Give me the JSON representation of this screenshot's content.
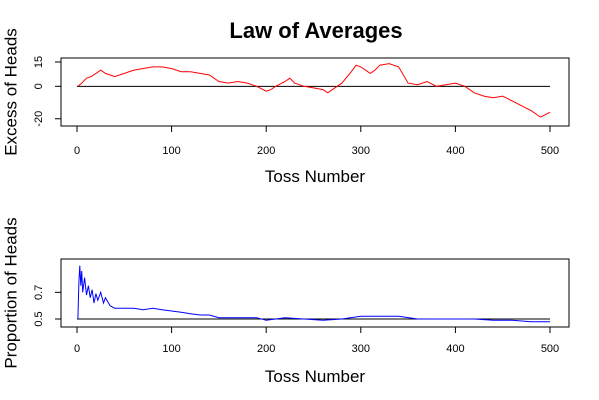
{
  "title": "Law of Averages",
  "colors": {
    "excess": "#ff0000",
    "proportion": "#0000ff",
    "reference": "#000000",
    "frame": "#000000"
  },
  "chart_data": [
    {
      "type": "line",
      "name": "excess",
      "xlabel": "Toss Number",
      "ylabel": "Excess of Heads",
      "xlim": [
        0,
        500
      ],
      "ylim": [
        -22,
        15
      ],
      "xticks": [
        0,
        100,
        200,
        300,
        400,
        500
      ],
      "yticks": [
        -20,
        0,
        15
      ],
      "reference_y": 0,
      "grid": false,
      "x": [
        1,
        5,
        10,
        15,
        20,
        25,
        30,
        40,
        50,
        60,
        70,
        80,
        90,
        100,
        110,
        120,
        130,
        140,
        150,
        160,
        170,
        180,
        190,
        200,
        205,
        210,
        220,
        225,
        230,
        240,
        250,
        260,
        265,
        270,
        280,
        290,
        295,
        300,
        310,
        315,
        320,
        330,
        340,
        350,
        360,
        370,
        380,
        390,
        400,
        410,
        420,
        430,
        440,
        450,
        460,
        470,
        480,
        490,
        500
      ],
      "y": [
        0,
        2,
        5,
        6,
        8,
        10,
        8,
        6,
        8,
        10,
        11,
        12,
        12,
        11,
        9,
        9,
        8,
        7,
        3,
        2,
        3,
        2,
        0,
        -3,
        -2,
        0,
        3,
        5,
        2,
        0,
        -1,
        -2,
        -4,
        -2,
        2,
        9,
        13,
        12,
        8,
        10,
        13,
        14,
        12,
        2,
        1,
        3,
        0,
        1,
        2,
        0,
        -4,
        -6,
        -7,
        -6,
        -9,
        -12,
        -15,
        -19,
        -16
      ]
    },
    {
      "type": "line",
      "name": "proportion",
      "xlabel": "Toss Number",
      "ylabel": "Proportion of Heads",
      "xlim": [
        0,
        500
      ],
      "ylim": [
        0.47,
        0.92
      ],
      "xticks": [
        0,
        100,
        200,
        300,
        400,
        500
      ],
      "yticks": [
        0.5,
        0.7
      ],
      "reference_y": 0.5,
      "grid": false,
      "x": [
        1,
        2,
        3,
        4,
        5,
        6,
        8,
        10,
        12,
        14,
        16,
        18,
        20,
        22,
        25,
        28,
        30,
        35,
        40,
        50,
        60,
        70,
        80,
        90,
        100,
        110,
        120,
        130,
        140,
        150,
        160,
        170,
        180,
        190,
        200,
        220,
        240,
        260,
        280,
        300,
        320,
        340,
        360,
        380,
        400,
        420,
        440,
        460,
        480,
        500
      ],
      "y": [
        0.5,
        0.78,
        0.9,
        0.75,
        0.86,
        0.7,
        0.81,
        0.68,
        0.75,
        0.66,
        0.72,
        0.62,
        0.69,
        0.64,
        0.7,
        0.62,
        0.66,
        0.6,
        0.58,
        0.58,
        0.58,
        0.57,
        0.58,
        0.57,
        0.56,
        0.55,
        0.54,
        0.53,
        0.53,
        0.51,
        0.51,
        0.51,
        0.51,
        0.51,
        0.49,
        0.51,
        0.5,
        0.49,
        0.5,
        0.52,
        0.52,
        0.52,
        0.5,
        0.5,
        0.5,
        0.5,
        0.49,
        0.49,
        0.48,
        0.48
      ]
    }
  ]
}
